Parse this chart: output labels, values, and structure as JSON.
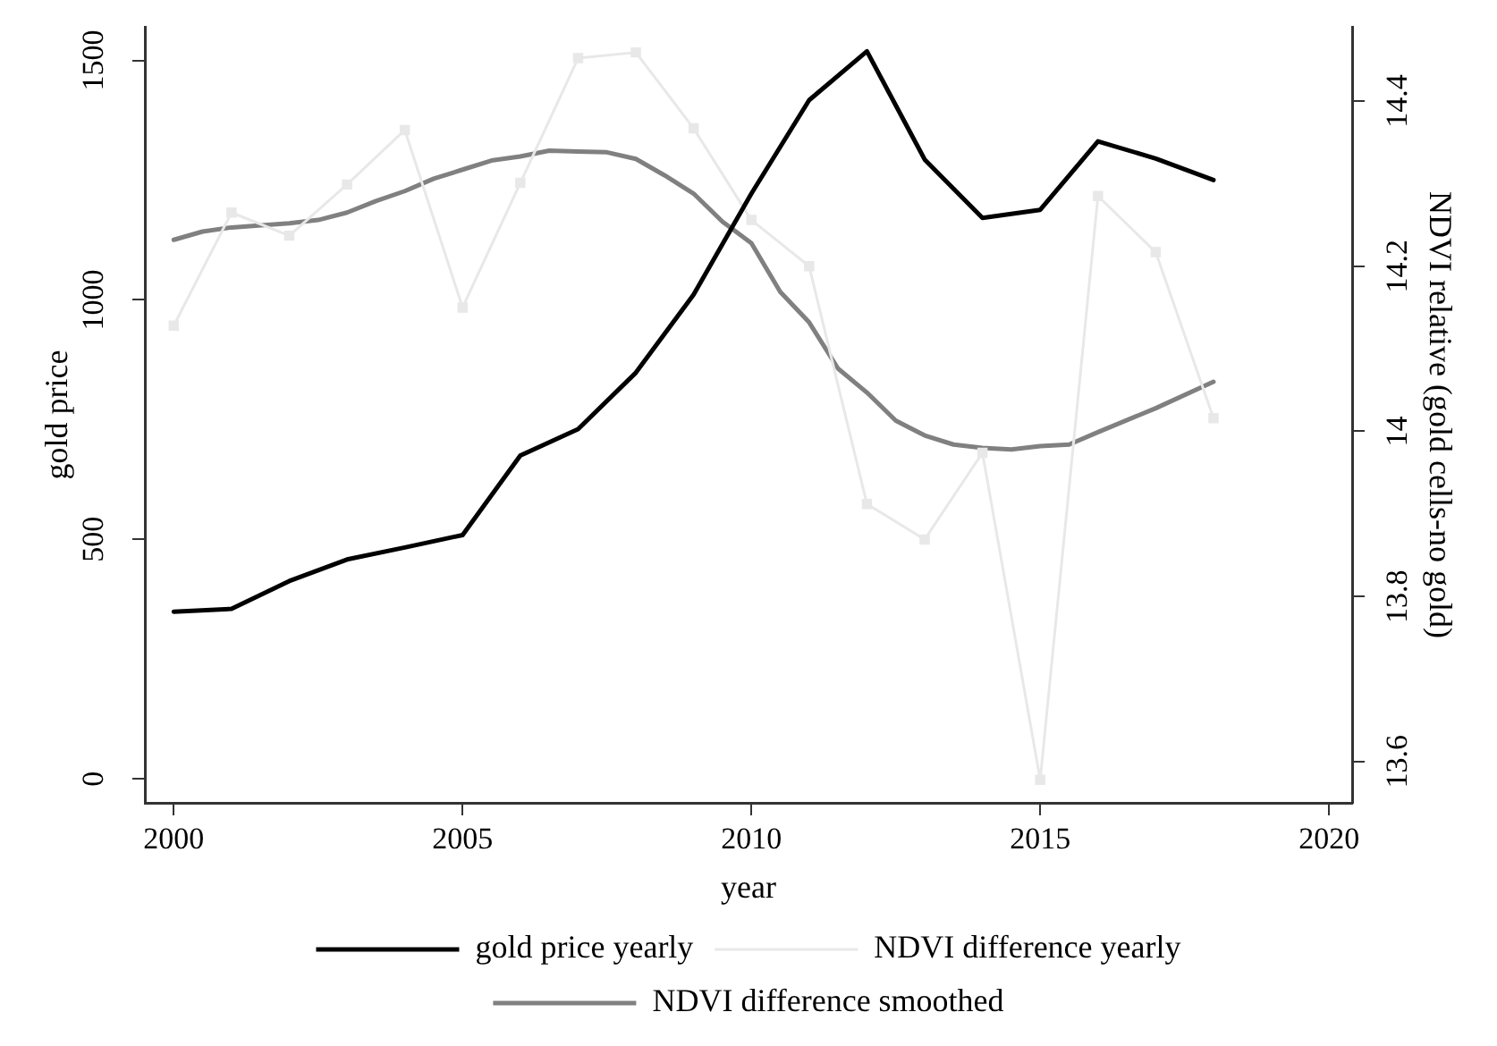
{
  "chart_data": {
    "type": "line",
    "xlabel": "year",
    "ylabel": "gold price",
    "y2label": "NDVI relative (gold cells-no gold)",
    "xlim": [
      1999.5,
      2020.4
    ],
    "xticks": [
      2000,
      2005,
      2010,
      2015,
      2020
    ],
    "ylim": [
      -50,
      1570
    ],
    "yticks": [
      0,
      500,
      1000,
      1500
    ],
    "y2lim": [
      13.55,
      14.49
    ],
    "y2ticks": [
      13.6,
      13.8,
      14,
      14.2,
      14.4
    ],
    "grid": false,
    "legend": "bottom",
    "line_style": "solid",
    "series": [
      {
        "name": "gold price yearly",
        "color": "#000000",
        "marker": "none",
        "x": [
          2000,
          2001,
          2002,
          2003,
          2004,
          2005,
          2006,
          2007,
          2008,
          2009,
          2010,
          2011,
          2012,
          2013,
          2014,
          2015,
          2016,
          2017,
          2018
        ],
        "values": [
          349,
          355,
          413,
          458,
          483,
          509,
          675,
          730,
          848,
          1011,
          1222,
          1417,
          1519,
          1293,
          1171,
          1188,
          1331,
          1295,
          1250
        ]
      },
      {
        "name": "NDVI difference yearly",
        "color": "#e8e8e8",
        "marker": "square",
        "axis": "y2",
        "x": [
          2000,
          2001,
          2002,
          2003,
          2004,
          2005,
          2006,
          2007,
          2008,
          2009,
          2010,
          2011,
          2012,
          2013,
          2014,
          2015,
          2016,
          2017,
          2018
        ],
        "values": [
          14.128,
          14.265,
          14.237,
          14.299,
          14.365,
          14.15,
          14.301,
          14.452,
          14.459,
          14.367,
          14.256,
          14.2,
          13.912,
          13.869,
          13.974,
          13.578,
          14.285,
          14.217,
          14.016
        ]
      },
      {
        "name": "NDVI difference smoothed",
        "color": "#808080",
        "marker": "none",
        "axis": "y2",
        "x": [
          2000,
          2000.5,
          2001,
          2002,
          2002.5,
          2003,
          2003.5,
          2004,
          2004.5,
          2005,
          2005.5,
          2006,
          2006.5,
          2007,
          2007.5,
          2008,
          2008.5,
          2009,
          2009.5,
          2010,
          2010.5,
          2011,
          2011.5,
          2012,
          2012.5,
          2013,
          2013.5,
          2014,
          2014.5,
          2015,
          2015.5,
          2016,
          2017,
          2018
        ],
        "values": [
          14.232,
          14.242,
          14.247,
          14.252,
          14.256,
          14.265,
          14.279,
          14.291,
          14.306,
          14.317,
          14.328,
          14.333,
          14.34,
          14.339,
          14.338,
          14.33,
          14.31,
          14.288,
          14.254,
          14.228,
          14.169,
          14.132,
          14.076,
          14.047,
          14.013,
          13.995,
          13.984,
          13.98,
          13.978,
          13.982,
          13.984,
          13.999,
          14.028,
          14.06
        ]
      }
    ]
  }
}
